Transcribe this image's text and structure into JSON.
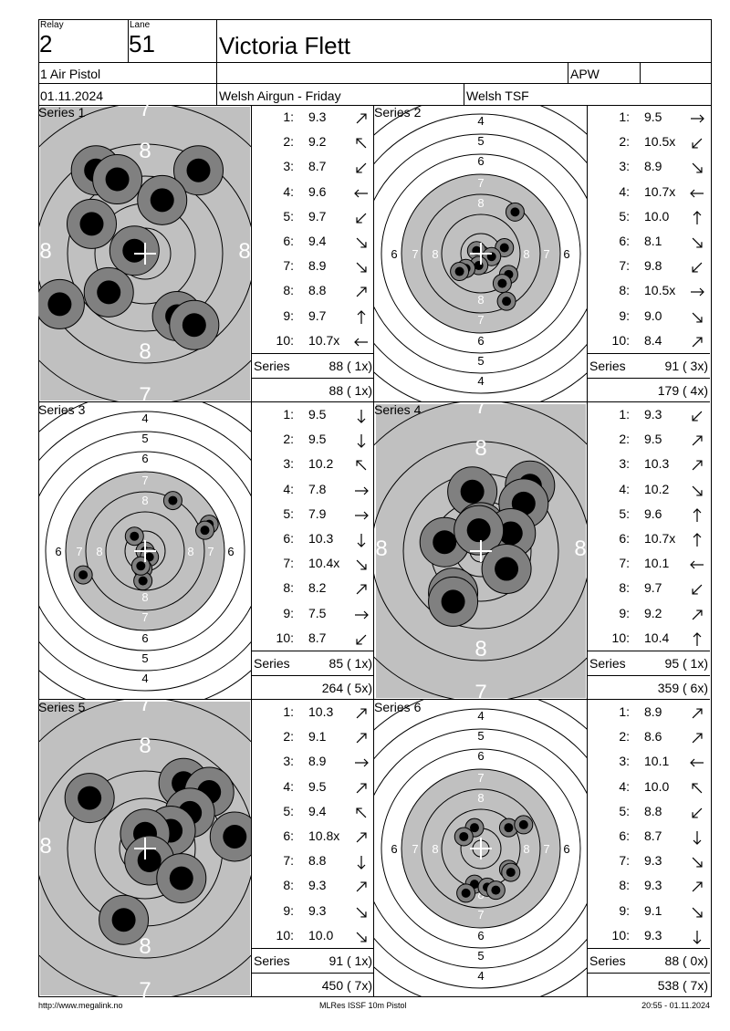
{
  "header": {
    "relay_label": "Relay",
    "relay_value": "2",
    "lane_label": "Lane",
    "lane_value": "51",
    "shooter_name": "Victoria Flett",
    "event": "1 Air Pistol",
    "class": "APW",
    "date": "01.11.2024",
    "competition": "Welsh Airgun - Friday",
    "club": "Welsh TSF"
  },
  "series": [
    {
      "title": "Series 1",
      "zoom": "far",
      "shots": [
        {
          "n": "1:",
          "v": "9.3",
          "dir": "ne"
        },
        {
          "n": "2:",
          "v": "9.2",
          "dir": "nw"
        },
        {
          "n": "3:",
          "v": "8.7",
          "dir": "sw"
        },
        {
          "n": "4:",
          "v": "9.6",
          "dir": "w"
        },
        {
          "n": "5:",
          "v": "9.7",
          "dir": "sw"
        },
        {
          "n": "6:",
          "v": "9.4",
          "dir": "se"
        },
        {
          "n": "7:",
          "v": "8.9",
          "dir": "se"
        },
        {
          "n": "8:",
          "v": "8.8",
          "dir": "ne"
        },
        {
          "n": "9:",
          "v": "9.7",
          "dir": "n"
        },
        {
          "n": "10:",
          "v": "10.7x",
          "dir": "w"
        }
      ],
      "series_label": "Series",
      "series_total": "88 ( 1x)",
      "running_total": "88 ( 1x)"
    },
    {
      "title": "Series 2",
      "zoom": "near",
      "shots": [
        {
          "n": "1:",
          "v": "9.5",
          "dir": "e"
        },
        {
          "n": "2:",
          "v": "10.5x",
          "dir": "sw"
        },
        {
          "n": "3:",
          "v": "8.9",
          "dir": "se"
        },
        {
          "n": "4:",
          "v": "10.7x",
          "dir": "w"
        },
        {
          "n": "5:",
          "v": "10.0",
          "dir": "n"
        },
        {
          "n": "6:",
          "v": "8.1",
          "dir": "se"
        },
        {
          "n": "7:",
          "v": "9.8",
          "dir": "sw"
        },
        {
          "n": "8:",
          "v": "10.5x",
          "dir": "e"
        },
        {
          "n": "9:",
          "v": "9.0",
          "dir": "se"
        },
        {
          "n": "10:",
          "v": "8.4",
          "dir": "ne"
        }
      ],
      "series_label": "Series",
      "series_total": "91 ( 3x)",
      "running_total": "179 ( 4x)"
    },
    {
      "title": "Series 3",
      "zoom": "near",
      "shots": [
        {
          "n": "1:",
          "v": "9.5",
          "dir": "s"
        },
        {
          "n": "2:",
          "v": "9.5",
          "dir": "s"
        },
        {
          "n": "3:",
          "v": "10.2",
          "dir": "nw"
        },
        {
          "n": "4:",
          "v": "7.8",
          "dir": "e"
        },
        {
          "n": "5:",
          "v": "7.9",
          "dir": "e"
        },
        {
          "n": "6:",
          "v": "10.3",
          "dir": "s"
        },
        {
          "n": "7:",
          "v": "10.4x",
          "dir": "se"
        },
        {
          "n": "8:",
          "v": "8.2",
          "dir": "ne"
        },
        {
          "n": "9:",
          "v": "7.5",
          "dir": "e"
        },
        {
          "n": "10:",
          "v": "8.7",
          "dir": "sw"
        }
      ],
      "series_label": "Series",
      "series_total": "85 ( 1x)",
      "running_total": "264 ( 5x)"
    },
    {
      "title": "Series 4",
      "zoom": "far",
      "shots": [
        {
          "n": "1:",
          "v": "9.3",
          "dir": "sw"
        },
        {
          "n": "2:",
          "v": "9.5",
          "dir": "ne"
        },
        {
          "n": "3:",
          "v": "10.3",
          "dir": "ne"
        },
        {
          "n": "4:",
          "v": "10.2",
          "dir": "se"
        },
        {
          "n": "5:",
          "v": "9.6",
          "dir": "n"
        },
        {
          "n": "6:",
          "v": "10.7x",
          "dir": "n"
        },
        {
          "n": "7:",
          "v": "10.1",
          "dir": "w"
        },
        {
          "n": "8:",
          "v": "9.7",
          "dir": "sw"
        },
        {
          "n": "9:",
          "v": "9.2",
          "dir": "ne"
        },
        {
          "n": "10:",
          "v": "10.4",
          "dir": "n"
        }
      ],
      "series_label": "Series",
      "series_total": "95 ( 1x)",
      "running_total": "359 ( 6x)"
    },
    {
      "title": "Series 5",
      "zoom": "far",
      "shots": [
        {
          "n": "1:",
          "v": "10.3",
          "dir": "ne"
        },
        {
          "n": "2:",
          "v": "9.1",
          "dir": "ne"
        },
        {
          "n": "3:",
          "v": "8.9",
          "dir": "e"
        },
        {
          "n": "4:",
          "v": "9.5",
          "dir": "ne"
        },
        {
          "n": "5:",
          "v": "9.4",
          "dir": "nw"
        },
        {
          "n": "6:",
          "v": "10.8x",
          "dir": "ne"
        },
        {
          "n": "7:",
          "v": "8.8",
          "dir": "s"
        },
        {
          "n": "8:",
          "v": "9.3",
          "dir": "ne"
        },
        {
          "n": "9:",
          "v": "9.3",
          "dir": "se"
        },
        {
          "n": "10:",
          "v": "10.0",
          "dir": "se"
        }
      ],
      "series_label": "Series",
      "series_total": "91 ( 1x)",
      "running_total": "450 ( 7x)"
    },
    {
      "title": "Series 6",
      "zoom": "near",
      "shots": [
        {
          "n": "1:",
          "v": "8.9",
          "dir": "ne"
        },
        {
          "n": "2:",
          "v": "8.6",
          "dir": "ne"
        },
        {
          "n": "3:",
          "v": "10.1",
          "dir": "w"
        },
        {
          "n": "4:",
          "v": "10.0",
          "dir": "nw"
        },
        {
          "n": "5:",
          "v": "8.8",
          "dir": "sw"
        },
        {
          "n": "6:",
          "v": "8.7",
          "dir": "s"
        },
        {
          "n": "7:",
          "v": "9.3",
          "dir": "se"
        },
        {
          "n": "8:",
          "v": "9.3",
          "dir": "ne"
        },
        {
          "n": "9:",
          "v": "9.1",
          "dir": "se"
        },
        {
          "n": "10:",
          "v": "9.3",
          "dir": "s"
        }
      ],
      "series_label": "Series",
      "series_total": "88 ( 0x)",
      "running_total": "538 ( 7x)"
    }
  ],
  "footer": {
    "left": "http://www.megalink.no",
    "center": "MLRes ISSF 10m Pistol",
    "right": "20:55 - 01.11.2024"
  },
  "colors": {
    "black": "#000000",
    "gray": "#c0c0c0",
    "shot_gray": "#808080"
  }
}
